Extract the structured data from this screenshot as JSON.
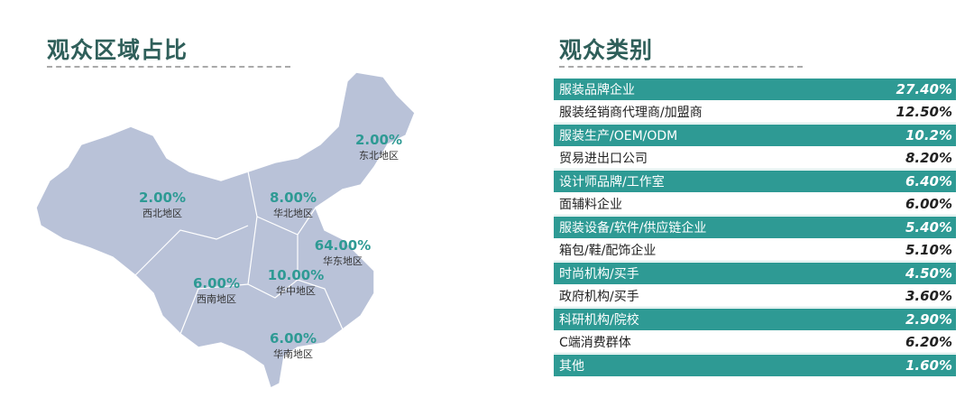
{
  "left": {
    "title": "观众区域占比",
    "regions": [
      {
        "name": "东北地区",
        "value": "2.00%"
      },
      {
        "name": "西北地区",
        "value": "2.00%"
      },
      {
        "name": "华北地区",
        "value": "8.00%"
      },
      {
        "name": "华东地区",
        "value": "64.00%"
      },
      {
        "name": "西南地区",
        "value": "6.00%"
      },
      {
        "name": "华中地区",
        "value": "10.00%"
      },
      {
        "name": "华南地区",
        "value": "6.00%"
      }
    ]
  },
  "right": {
    "title": "观众类别",
    "rows": [
      {
        "label": "服装品牌企业",
        "value": "27.40%"
      },
      {
        "label": "服装经销商代理商/加盟商",
        "value": "12.50%"
      },
      {
        "label": "服装生产/OEM/ODM",
        "value": "10.2%"
      },
      {
        "label": "贸易进出口公司",
        "value": "8.20%"
      },
      {
        "label": "设计师品牌/工作室",
        "value": "6.40%"
      },
      {
        "label": "面辅料企业",
        "value": "6.00%"
      },
      {
        "label": "服装设备/软件/供应链企业",
        "value": "5.40%"
      },
      {
        "label": "箱包/鞋/配饰企业",
        "value": "5.10%"
      },
      {
        "label": "时尚机构/买手",
        "value": "4.50%"
      },
      {
        "label": "政府机构/买手",
        "value": "3.60%"
      },
      {
        "label": "科研机构/院校",
        "value": "2.90%"
      },
      {
        "label": "C端消费群体",
        "value": "6.20%"
      },
      {
        "label": "其他",
        "value": "1.60%"
      }
    ]
  },
  "colors": {
    "accent": "#2e9a94",
    "title": "#2f5f5a",
    "map": "#b9c2d8"
  }
}
